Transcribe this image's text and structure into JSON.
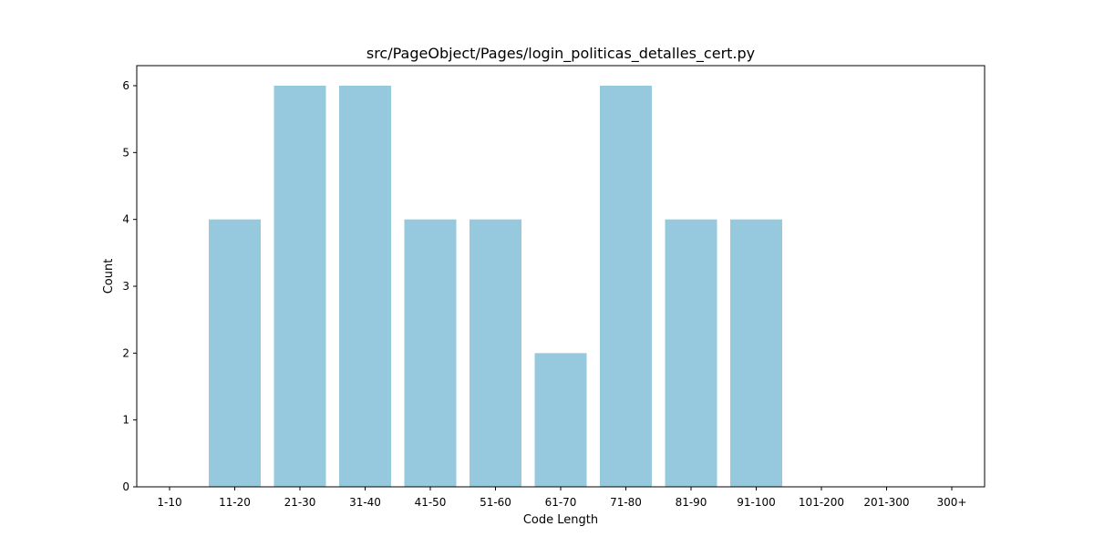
{
  "chart_data": {
    "type": "bar",
    "title": "src/PageObject/Pages/login_politicas_detalles_cert.py",
    "xlabel": "Code Length",
    "ylabel": "Count",
    "categories": [
      "1-10",
      "11-20",
      "21-30",
      "31-40",
      "41-50",
      "51-60",
      "61-70",
      "71-80",
      "81-90",
      "91-100",
      "101-200",
      "201-300",
      "300+"
    ],
    "values": [
      0,
      4,
      6,
      6,
      4,
      4,
      2,
      6,
      4,
      4,
      0,
      0,
      0
    ],
    "ylim": [
      0,
      6.3
    ],
    "yticks": [
      0,
      1,
      2,
      3,
      4,
      5,
      6
    ],
    "grid": false,
    "bar_color": "#96c9de"
  }
}
